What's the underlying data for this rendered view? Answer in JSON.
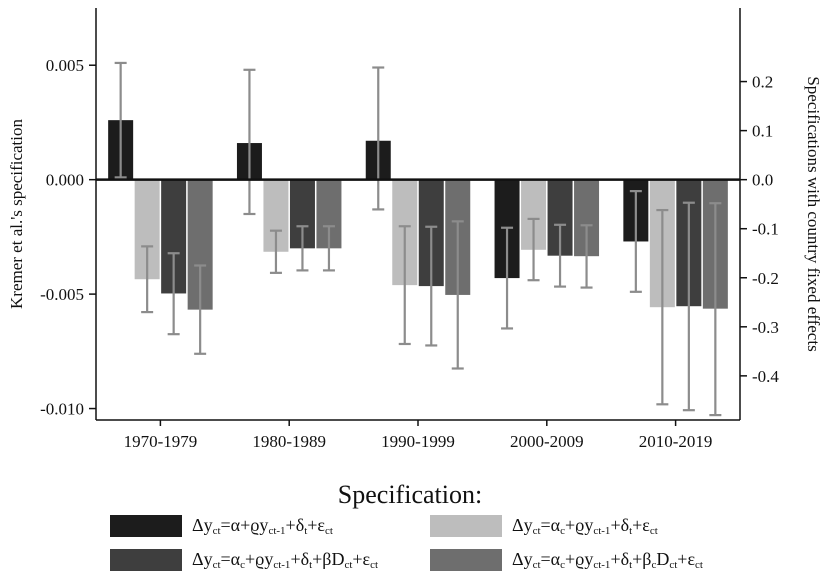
{
  "chart_data": {
    "type": "bar",
    "categories": [
      "1970-1979",
      "1980-1989",
      "1990-1999",
      "2000-2009",
      "2010-2019"
    ],
    "left_axis": {
      "label": "Kremer et al.'s specification",
      "ylim": [
        -0.0105,
        0.0075
      ],
      "ticks": [
        0.005,
        0.0,
        -0.005,
        -0.01
      ],
      "tick_labels": [
        "0.005",
        "0.000",
        "-0.005",
        "-0.010"
      ]
    },
    "right_axis": {
      "label": "Specifications with country fixed effects",
      "ylim": [
        -0.49,
        0.35
      ],
      "ticks": [
        0.2,
        0.1,
        0.0,
        -0.1,
        -0.2,
        -0.3,
        -0.4
      ],
      "tick_labels": [
        "0.2",
        "0.1",
        "0.0",
        "-0.1",
        "-0.2",
        "-0.3",
        "-0.4"
      ]
    },
    "series": [
      {
        "axis": "left",
        "color": "#1c1c1c",
        "values": [
          0.0026,
          0.0016,
          0.0017,
          -0.0043,
          -0.0027
        ],
        "err_low": [
          0.0001,
          -0.0015,
          -0.0013,
          -0.0065,
          -0.0049
        ],
        "err_high": [
          0.0051,
          0.0048,
          0.0049,
          -0.0021,
          -0.0005
        ]
      },
      {
        "axis": "right",
        "color": "#bdbdbd",
        "values": [
          -0.203,
          -0.147,
          -0.215,
          -0.143,
          -0.26
        ],
        "err_low": [
          -0.27,
          -0.19,
          -0.335,
          -0.205,
          -0.458
        ],
        "err_high": [
          -0.136,
          -0.104,
          -0.095,
          -0.08,
          -0.062
        ]
      },
      {
        "axis": "right",
        "color": "#3e3e3e",
        "values": [
          -0.232,
          -0.14,
          -0.217,
          -0.155,
          -0.258
        ],
        "err_low": [
          -0.315,
          -0.185,
          -0.338,
          -0.218,
          -0.47
        ],
        "err_high": [
          -0.15,
          -0.095,
          -0.096,
          -0.092,
          -0.047
        ]
      },
      {
        "axis": "right",
        "color": "#6e6e6e",
        "values": [
          -0.265,
          -0.14,
          -0.235,
          -0.156,
          -0.263
        ],
        "err_low": [
          -0.355,
          -0.185,
          -0.385,
          -0.22,
          -0.48
        ],
        "err_high": [
          -0.175,
          -0.095,
          -0.085,
          -0.093,
          -0.048
        ]
      }
    ],
    "legend": {
      "title": "Specification:",
      "items": [
        {
          "color": "#1c1c1c",
          "html": "Δy<sub>ct</sub>=α+ϱy<sub>ct-1</sub>+δ<sub>t</sub>+ε<sub>ct</sub>"
        },
        {
          "color": "#bdbdbd",
          "html": "Δy<sub>ct</sub>=α<sub>c</sub>+ϱy<sub>ct-1</sub>+δ<sub>t</sub>+ε<sub>ct</sub>"
        },
        {
          "color": "#3e3e3e",
          "html": "Δy<sub>ct</sub>=α<sub>c</sub>+ϱy<sub>ct-1</sub>+δ<sub>t</sub>+βD<sub>ct</sub>+ε<sub>ct</sub>"
        },
        {
          "color": "#6e6e6e",
          "html": "Δy<sub>ct</sub>=α<sub>c</sub>+ϱy<sub>ct-1</sub>+δ<sub>t</sub>+β<sub>c</sub>D<sub>ct</sub>+ε<sub>ct</sub>"
        }
      ]
    },
    "grid": false,
    "legend_placement": "bottom"
  }
}
